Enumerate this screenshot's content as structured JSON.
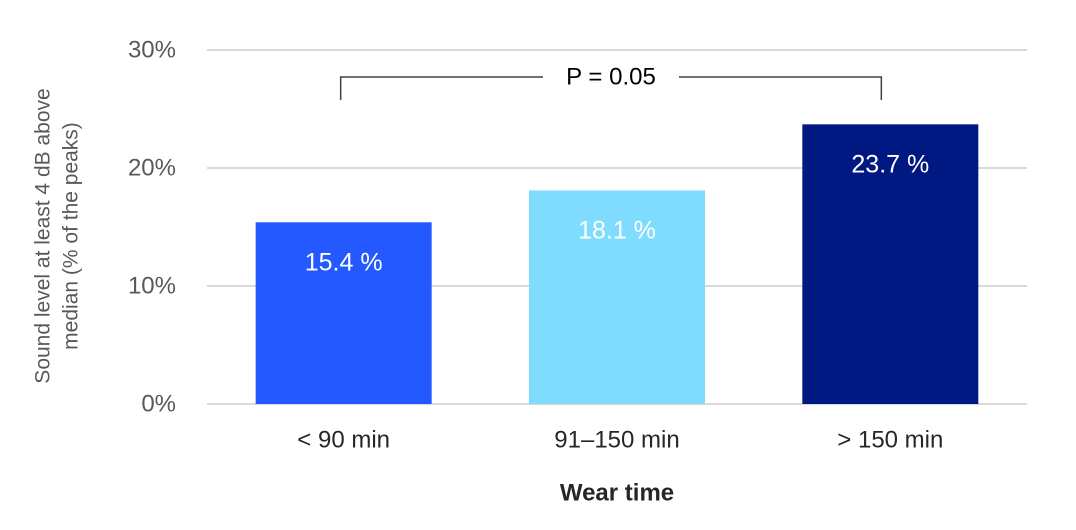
{
  "chart_data": {
    "type": "bar",
    "categories": [
      "< 90 min",
      "91–150 min",
      "> 150 min"
    ],
    "values": [
      15.4,
      18.1,
      23.7
    ],
    "data_labels": [
      "15.4 %",
      "18.1 %",
      "23.7 %"
    ],
    "colors": [
      "#2359FE",
      "#80DCFF",
      "#001882"
    ],
    "xlabel": "Wear time",
    "ylabel_lines": [
      "Sound level at least 4 dB above",
      "median (% of the peaks)"
    ],
    "ylim": [
      0,
      30
    ],
    "yticks": [
      0,
      10,
      20,
      30
    ],
    "ytick_labels": [
      "0%",
      "10%",
      "20%",
      "30%"
    ],
    "grid": true,
    "annotation": {
      "text": "P = 0.05",
      "from_category": 0,
      "to_category": 2
    }
  }
}
